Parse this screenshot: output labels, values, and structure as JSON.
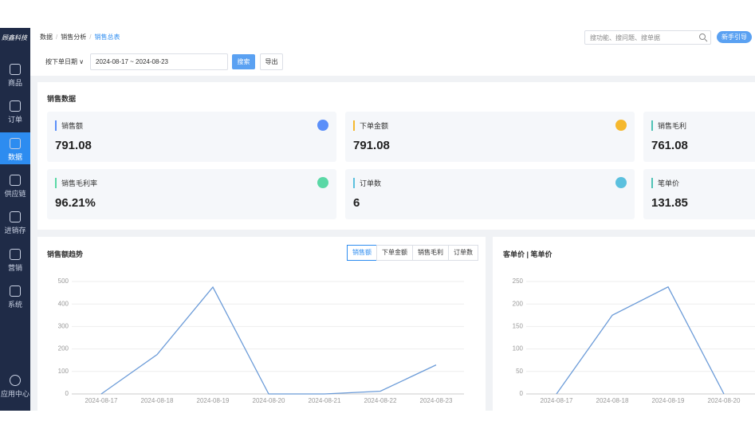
{
  "sidebar": {
    "logo": "顾鑫科技",
    "menu": [
      "商品",
      "订单",
      "数据",
      "供应链",
      "进销存",
      "营销",
      "系统"
    ],
    "active": 2,
    "app_center": "应用中心"
  },
  "breadcrumb": [
    "数据",
    "销售分析",
    "销售总表"
  ],
  "search_placeholder": "搜功能、搜问题、搜单据",
  "guide_button": "新手引导",
  "filter": {
    "date_type": "按下单日期",
    "date_range": "2024-08-17 ~ 2024-08-23",
    "search": "搜索",
    "export": "导出"
  },
  "sales": {
    "title": "销售数据",
    "cards": [
      {
        "label": "销售额",
        "value": 791.08,
        "color": "#5b8ff9"
      },
      {
        "label": "下单金额",
        "value": 791.08,
        "color": "#f5b82e"
      },
      {
        "label": "销售毛利",
        "value": 761.08,
        "color": "#4ec2b5"
      },
      {
        "label": "销售毛利率",
        "value": "96.21%",
        "color": "#5ad8a6"
      },
      {
        "label": "订单数",
        "value": 6,
        "color": "#5bc0de"
      },
      {
        "label": "笔单价",
        "value": 131.85,
        "color": "#4ec2b5"
      }
    ]
  },
  "charts": [
    {
      "type": "line",
      "title": "销售额趋势",
      "tabs": [
        "销售额",
        "下单金额",
        "销售毛利",
        "订单数"
      ],
      "active_tab": 0,
      "categories": [
        "2024-08-17",
        "2024-08-18",
        "2024-08-19",
        "2024-08-20",
        "2024-08-21",
        "2024-08-22",
        "2024-08-23"
      ],
      "values": [
        0,
        175,
        475,
        0,
        0,
        12,
        129
      ],
      "ylim": [
        0,
        500
      ],
      "yticks": [
        0,
        100,
        200,
        300,
        400,
        500
      ],
      "grid": true,
      "color": "#6b9bd8"
    },
    {
      "type": "line",
      "title": "客单价 | 笔单价",
      "categories": [
        "2024-08-17",
        "2024-08-18",
        "2024-08-19",
        "2024-08-20"
      ],
      "values": [
        0,
        175,
        238,
        0
      ],
      "ylim": [
        0,
        250
      ],
      "yticks": [
        0,
        50,
        100,
        150,
        200,
        250
      ],
      "grid": true,
      "color": "#6b9bd8"
    }
  ]
}
